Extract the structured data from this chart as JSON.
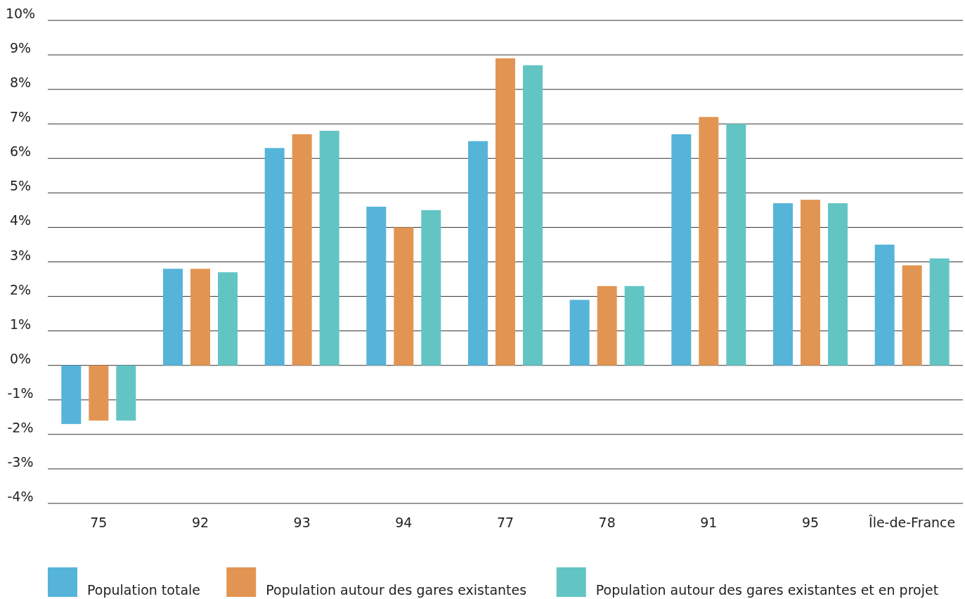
{
  "chart_data": {
    "type": "bar",
    "categories": [
      "75",
      "92",
      "93",
      "94",
      "77",
      "78",
      "91",
      "95",
      "Île-de-France"
    ],
    "series": [
      {
        "name": "Population totale",
        "color": "#56b4d9",
        "values": [
          -1.7,
          2.8,
          6.3,
          4.6,
          6.5,
          1.9,
          6.7,
          4.7,
          3.5
        ]
      },
      {
        "name": "Population autour des gares existantes",
        "color": "#e29552",
        "values": [
          -1.6,
          2.8,
          6.7,
          4.0,
          8.9,
          2.3,
          7.2,
          4.8,
          2.9
        ]
      },
      {
        "name": "Population autour des gares existantes et en projet",
        "color": "#62c5c4",
        "values": [
          -1.6,
          2.7,
          6.8,
          4.5,
          8.7,
          2.3,
          7.0,
          4.7,
          3.1
        ]
      }
    ],
    "ylim": [
      -4,
      10
    ],
    "yticks": [
      {
        "value": -4,
        "label": "-4%"
      },
      {
        "value": -3,
        "label": "-3%"
      },
      {
        "value": -2,
        "label": "-2%"
      },
      {
        "value": -1,
        "label": "-1%"
      },
      {
        "value": 0,
        "label": "0%"
      },
      {
        "value": 1,
        "label": "1%"
      },
      {
        "value": 2,
        "label": "2%"
      },
      {
        "value": 3,
        "label": "3%"
      },
      {
        "value": 4,
        "label": "4%"
      },
      {
        "value": 5,
        "label": "5%"
      },
      {
        "value": 6,
        "label": "6%"
      },
      {
        "value": 7,
        "label": "7%"
      },
      {
        "value": 8,
        "label": "8%"
      },
      {
        "value": 9,
        "label": "9%"
      },
      {
        "value": 10,
        "label": "10%"
      }
    ],
    "grid": "y",
    "legend": "bottom"
  }
}
